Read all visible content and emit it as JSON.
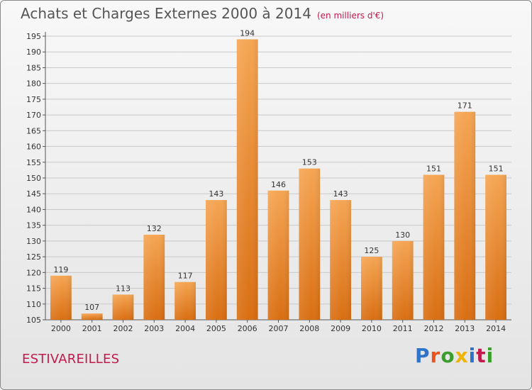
{
  "header": {
    "title": "Achats et Charges Externes 2000 à 2014",
    "unit": "(en milliers d'€)"
  },
  "commune": "ESTIVAREILLES",
  "logo": {
    "text": "Proxiti",
    "colors": [
      "#2e73c9",
      "#e8541c",
      "#3a9d2c",
      "#f0b400",
      "#2e73c9",
      "#c21a4c",
      "#3a9d2c"
    ]
  },
  "chart_data": {
    "type": "bar",
    "title": "Achats et Charges Externes 2000 à 2014",
    "subtitle": "(en milliers d'€)",
    "categories": [
      "2000",
      "2001",
      "2002",
      "2003",
      "2004",
      "2005",
      "2006",
      "2007",
      "2008",
      "2009",
      "2010",
      "2011",
      "2012",
      "2013",
      "2014"
    ],
    "values": [
      119,
      107,
      113,
      132,
      117,
      143,
      194,
      146,
      153,
      143,
      125,
      130,
      151,
      171,
      151
    ],
    "ylim": [
      105,
      195
    ],
    "yticks": [
      105,
      110,
      115,
      120,
      125,
      130,
      135,
      140,
      145,
      150,
      155,
      160,
      165,
      170,
      175,
      180,
      185,
      190,
      195
    ],
    "grid": true,
    "bar_color": "#f0923a"
  }
}
